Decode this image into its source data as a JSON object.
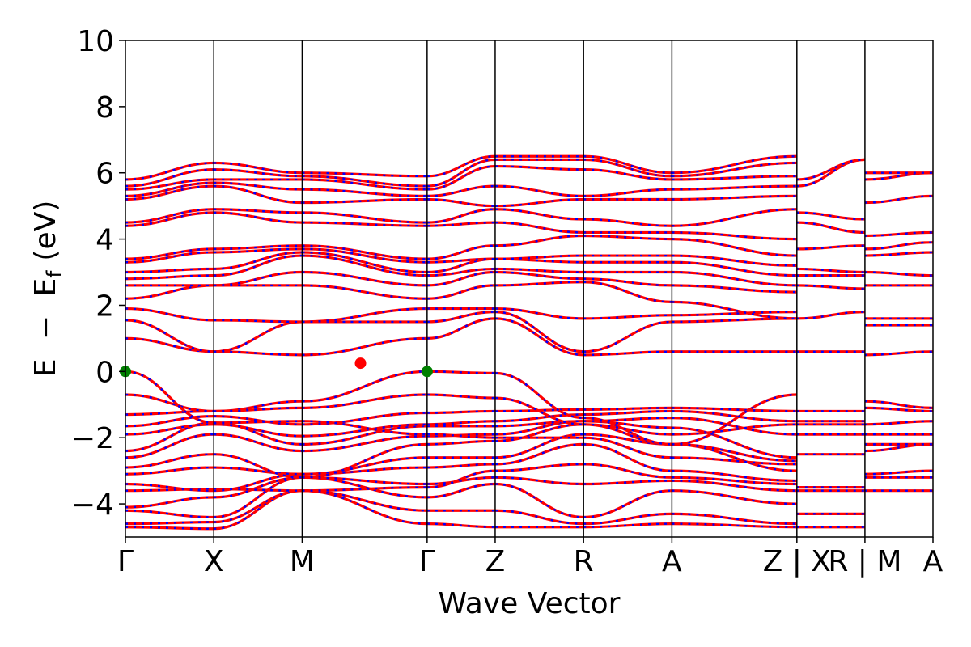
{
  "chart_data": {
    "type": "line",
    "xlabel": "Wave Vector",
    "ylabel": {
      "E": "E",
      "minus": "−",
      "Ef_main": "E",
      "Ef_sub": "f",
      "unit": "(eV)"
    },
    "ylim": [
      -5,
      10
    ],
    "y_ticks": [
      -4,
      -2,
      0,
      2,
      4,
      6,
      8,
      10
    ],
    "y_tick_labels": [
      "−4",
      "−2",
      "0",
      "2",
      "4",
      "6",
      "8",
      "10"
    ],
    "k_points": [
      {
        "label": "Γ",
        "x": 0
      },
      {
        "label": "X",
        "x": 1
      },
      {
        "label": "M",
        "x": 2
      },
      {
        "label": "Γ",
        "x": 3.414
      },
      {
        "label": "Z",
        "x": 4.184
      },
      {
        "label": "R",
        "x": 5.184
      },
      {
        "label": "A",
        "x": 6.184
      },
      {
        "label": "Z | X",
        "x": 7.598
      },
      {
        "label": "R | M",
        "x": 8.368
      },
      {
        "label": "A",
        "x": 9.138
      }
    ],
    "grid": false,
    "band_colors": {
      "line": "#ff0000",
      "dash": "#0000ff"
    },
    "special_points": [
      {
        "name": "VBM",
        "x": 0,
        "y": 0,
        "color": "#008000"
      },
      {
        "name": "VBM",
        "x": 3.414,
        "y": 0,
        "color": "#008000"
      },
      {
        "name": "CBM",
        "x": 2.66,
        "y": 0.25,
        "color": "#ff0000"
      }
    ],
    "segments": [
      {
        "from": "Γ",
        "to": "X",
        "x": [
          0,
          1
        ],
        "bands": [
          [
            -4.7,
            -4.75
          ],
          [
            -4.6,
            -4.55
          ],
          [
            -4.2,
            -4.4
          ],
          [
            -4.1,
            -3.8
          ],
          [
            -3.6,
            -3.55
          ],
          [
            -3.4,
            -3.6
          ],
          [
            -3.1,
            -2.9
          ],
          [
            -2.9,
            -2.5
          ],
          [
            -2.6,
            -1.9
          ],
          [
            -2.4,
            -1.55
          ],
          [
            -1.9,
            -1.6
          ],
          [
            -1.65,
            -1.35
          ],
          [
            -1.3,
            -1.2
          ],
          [
            -0.7,
            -1.2
          ],
          [
            0.0,
            -1.55
          ],
          [
            1.0,
            0.6
          ],
          [
            1.55,
            0.6
          ],
          [
            1.9,
            1.55
          ],
          [
            2.2,
            2.6
          ],
          [
            2.6,
            2.6
          ],
          [
            2.8,
            2.9
          ],
          [
            3.0,
            3.1
          ],
          [
            3.3,
            3.6
          ],
          [
            3.4,
            3.7
          ],
          [
            4.4,
            4.8
          ],
          [
            4.5,
            4.9
          ],
          [
            5.2,
            5.6
          ],
          [
            5.3,
            5.7
          ],
          [
            5.5,
            5.8
          ],
          [
            5.6,
            6.1
          ],
          [
            5.8,
            6.3
          ]
        ]
      },
      {
        "from": "X",
        "to": "M",
        "x": [
          1,
          2
        ],
        "bands": [
          [
            -4.75,
            -3.6
          ],
          [
            -4.55,
            -3.6
          ],
          [
            -4.4,
            -3.2
          ],
          [
            -3.8,
            -3.2
          ],
          [
            -3.55,
            -3.6
          ],
          [
            -3.6,
            -3.1
          ],
          [
            -2.9,
            -3.1
          ],
          [
            -2.5,
            -3.2
          ],
          [
            -1.9,
            -2.4
          ],
          [
            -1.55,
            -2.2
          ],
          [
            -1.6,
            -1.95
          ],
          [
            -1.35,
            -1.6
          ],
          [
            -1.2,
            -0.9
          ],
          [
            -1.2,
            -1.1
          ],
          [
            -1.55,
            -1.5
          ],
          [
            0.6,
            0.5
          ],
          [
            0.6,
            1.5
          ],
          [
            1.55,
            1.5
          ],
          [
            2.6,
            2.6
          ],
          [
            2.6,
            3.0
          ],
          [
            2.9,
            3.5
          ],
          [
            3.1,
            3.6
          ],
          [
            3.6,
            3.7
          ],
          [
            3.7,
            3.8
          ],
          [
            4.8,
            4.5
          ],
          [
            4.9,
            4.8
          ],
          [
            5.6,
            5.1
          ],
          [
            5.7,
            5.5
          ],
          [
            5.8,
            5.8
          ],
          [
            6.1,
            5.9
          ],
          [
            6.3,
            6.0
          ]
        ]
      },
      {
        "from": "M",
        "to": "Γ",
        "x": [
          2,
          3.414
        ],
        "bands": [
          [
            -3.6,
            -4.6
          ],
          [
            -3.6,
            -4.2
          ],
          [
            -3.2,
            -3.8
          ],
          [
            -3.2,
            -3.4
          ],
          [
            -3.6,
            -3.5
          ],
          [
            -3.1,
            -2.9
          ],
          [
            -3.1,
            -2.6
          ],
          [
            -3.2,
            -2.2
          ],
          [
            -2.4,
            -1.95
          ],
          [
            -2.2,
            -1.65
          ],
          [
            -1.95,
            -1.6
          ],
          [
            -1.6,
            -1.25
          ],
          [
            -0.9,
            0.0
          ],
          [
            -1.1,
            -0.7
          ],
          [
            -1.5,
            -1.9
          ],
          [
            0.5,
            1.0
          ],
          [
            1.5,
            1.5
          ],
          [
            1.5,
            1.9
          ],
          [
            2.6,
            2.2
          ],
          [
            3.0,
            2.6
          ],
          [
            3.5,
            2.9
          ],
          [
            3.6,
            3.0
          ],
          [
            3.7,
            3.3
          ],
          [
            3.8,
            3.4
          ],
          [
            4.5,
            4.4
          ],
          [
            4.8,
            4.5
          ],
          [
            5.1,
            5.2
          ],
          [
            5.5,
            5.3
          ],
          [
            5.8,
            5.5
          ],
          [
            5.9,
            5.6
          ],
          [
            6.0,
            5.9
          ]
        ]
      },
      {
        "from": "Γ",
        "to": "Z",
        "x": [
          3.414,
          4.184
        ],
        "bands": [
          [
            -4.6,
            -4.7
          ],
          [
            -4.2,
            -4.2
          ],
          [
            -3.8,
            -3.4
          ],
          [
            -3.4,
            -3.2
          ],
          [
            -3.5,
            -3.0
          ],
          [
            -2.9,
            -2.8
          ],
          [
            -2.6,
            -2.6
          ],
          [
            -2.2,
            -2.1
          ],
          [
            -1.95,
            -1.9
          ],
          [
            -1.65,
            -1.65
          ],
          [
            -1.6,
            -1.5
          ],
          [
            -1.25,
            -1.2
          ],
          [
            0.0,
            -0.05
          ],
          [
            -0.7,
            -0.8
          ],
          [
            -1.9,
            -2.0
          ],
          [
            1.0,
            1.6
          ],
          [
            1.5,
            1.8
          ],
          [
            1.9,
            1.9
          ],
          [
            2.2,
            2.6
          ],
          [
            2.6,
            3.0
          ],
          [
            2.9,
            3.1
          ],
          [
            3.0,
            3.4
          ],
          [
            3.3,
            3.4
          ],
          [
            3.4,
            3.8
          ],
          [
            4.4,
            4.5
          ],
          [
            4.5,
            4.9
          ],
          [
            5.2,
            5.0
          ],
          [
            5.3,
            5.6
          ],
          [
            5.5,
            6.2
          ],
          [
            5.6,
            6.4
          ],
          [
            5.9,
            6.5
          ]
        ]
      },
      {
        "from": "Z",
        "to": "R",
        "x": [
          4.184,
          5.184
        ],
        "bands": [
          [
            -4.7,
            -4.7
          ],
          [
            -4.2,
            -4.6
          ],
          [
            -3.4,
            -4.4
          ],
          [
            -3.2,
            -3.4
          ],
          [
            -3.0,
            -2.8
          ],
          [
            -2.8,
            -2.2
          ],
          [
            -2.6,
            -1.9
          ],
          [
            -2.1,
            -1.6
          ],
          [
            -1.9,
            -1.5
          ],
          [
            -1.65,
            -1.5
          ],
          [
            -1.5,
            -1.3
          ],
          [
            -1.2,
            -1.15
          ],
          [
            -0.05,
            -1.4
          ],
          [
            -0.8,
            -1.6
          ],
          [
            -2.0,
            -2.0
          ],
          [
            1.6,
            0.5
          ],
          [
            1.8,
            0.6
          ],
          [
            1.9,
            1.6
          ],
          [
            2.6,
            2.7
          ],
          [
            3.0,
            2.8
          ],
          [
            3.1,
            3.0
          ],
          [
            3.4,
            3.3
          ],
          [
            3.4,
            3.5
          ],
          [
            3.8,
            4.1
          ],
          [
            4.5,
            4.2
          ],
          [
            4.9,
            4.6
          ],
          [
            5.0,
            5.2
          ],
          [
            5.6,
            5.3
          ],
          [
            6.2,
            6.1
          ],
          [
            6.4,
            6.4
          ],
          [
            6.5,
            6.5
          ]
        ]
      },
      {
        "from": "R",
        "to": "A",
        "x": [
          5.184,
          6.184
        ],
        "bands": [
          [
            -4.7,
            -4.6
          ],
          [
            -4.6,
            -4.3
          ],
          [
            -4.4,
            -3.6
          ],
          [
            -3.4,
            -3.3
          ],
          [
            -2.8,
            -3.2
          ],
          [
            -2.2,
            -3.0
          ],
          [
            -1.9,
            -2.2
          ],
          [
            -1.6,
            -2.2
          ],
          [
            -1.5,
            -1.7
          ],
          [
            -1.5,
            -1.4
          ],
          [
            -1.3,
            -1.2
          ],
          [
            -1.15,
            -1.1
          ],
          [
            -1.4,
            -2.2
          ],
          [
            -1.6,
            -1.9
          ],
          [
            -2.0,
            -2.6
          ],
          [
            0.5,
            0.6
          ],
          [
            0.6,
            1.5
          ],
          [
            1.6,
            1.7
          ],
          [
            2.7,
            2.1
          ],
          [
            2.8,
            2.6
          ],
          [
            3.0,
            3.0
          ],
          [
            3.3,
            3.3
          ],
          [
            3.5,
            3.5
          ],
          [
            4.1,
            4.0
          ],
          [
            4.2,
            4.2
          ],
          [
            4.6,
            4.4
          ],
          [
            5.2,
            5.2
          ],
          [
            5.3,
            5.5
          ],
          [
            6.1,
            5.8
          ],
          [
            6.4,
            5.9
          ],
          [
            6.5,
            6.0
          ]
        ]
      },
      {
        "from": "A",
        "to": "Z",
        "x": [
          6.184,
          7.598
        ],
        "bands": [
          [
            -4.6,
            -4.7
          ],
          [
            -4.3,
            -4.6
          ],
          [
            -3.6,
            -4.0
          ],
          [
            -3.3,
            -3.6
          ],
          [
            -3.2,
            -3.4
          ],
          [
            -3.0,
            -3.3
          ],
          [
            -2.2,
            -3.0
          ],
          [
            -2.2,
            -2.7
          ],
          [
            -1.7,
            -2.6
          ],
          [
            -1.4,
            -1.9
          ],
          [
            -1.2,
            -1.5
          ],
          [
            -1.1,
            -1.2
          ],
          [
            -2.2,
            -0.7
          ],
          [
            -1.9,
            -1.6
          ],
          [
            -2.6,
            -2.8
          ],
          [
            0.6,
            0.6
          ],
          [
            1.5,
            1.6
          ],
          [
            1.7,
            1.8
          ],
          [
            2.1,
            1.6
          ],
          [
            2.6,
            2.4
          ],
          [
            3.0,
            2.6
          ],
          [
            3.3,
            2.9
          ],
          [
            3.5,
            3.2
          ],
          [
            4.0,
            3.5
          ],
          [
            4.2,
            4.0
          ],
          [
            4.4,
            4.9
          ],
          [
            5.2,
            5.3
          ],
          [
            5.5,
            5.6
          ],
          [
            5.8,
            5.9
          ],
          [
            5.9,
            6.3
          ],
          [
            6.0,
            6.5
          ]
        ]
      },
      {
        "from": "X",
        "to": "R",
        "x": [
          7.598,
          8.368
        ],
        "bands": [
          [
            -4.7,
            -4.7
          ],
          [
            -4.3,
            -4.3
          ],
          [
            -3.6,
            -3.6
          ],
          [
            -3.5,
            -3.5
          ],
          [
            -2.5,
            -2.5
          ],
          [
            -1.9,
            -1.9
          ],
          [
            -1.6,
            -1.6
          ],
          [
            -1.5,
            -1.5
          ],
          [
            -1.2,
            -1.2
          ],
          [
            0.6,
            0.6
          ],
          [
            1.6,
            1.8
          ],
          [
            2.6,
            2.5
          ],
          [
            2.9,
            2.9
          ],
          [
            3.1,
            3.0
          ],
          [
            3.7,
            3.8
          ],
          [
            4.5,
            4.2
          ],
          [
            4.8,
            4.6
          ],
          [
            5.6,
            6.4
          ],
          [
            5.8,
            6.4
          ]
        ]
      },
      {
        "from": "M",
        "to": "A",
        "x": [
          8.368,
          9.138
        ],
        "bands": [
          [
            -3.6,
            -3.6
          ],
          [
            -3.2,
            -3.2
          ],
          [
            -3.1,
            -3.0
          ],
          [
            -2.4,
            -2.2
          ],
          [
            -2.2,
            -2.2
          ],
          [
            -1.9,
            -1.9
          ],
          [
            -1.6,
            -1.5
          ],
          [
            -1.1,
            -1.2
          ],
          [
            -0.9,
            -1.1
          ],
          [
            0.5,
            0.6
          ],
          [
            1.4,
            1.4
          ],
          [
            1.6,
            1.6
          ],
          [
            2.6,
            2.6
          ],
          [
            3.0,
            2.9
          ],
          [
            3.5,
            3.6
          ],
          [
            3.7,
            3.9
          ],
          [
            4.1,
            4.2
          ],
          [
            5.1,
            5.3
          ],
          [
            5.8,
            6.0
          ],
          [
            6.0,
            6.0
          ]
        ]
      }
    ]
  }
}
